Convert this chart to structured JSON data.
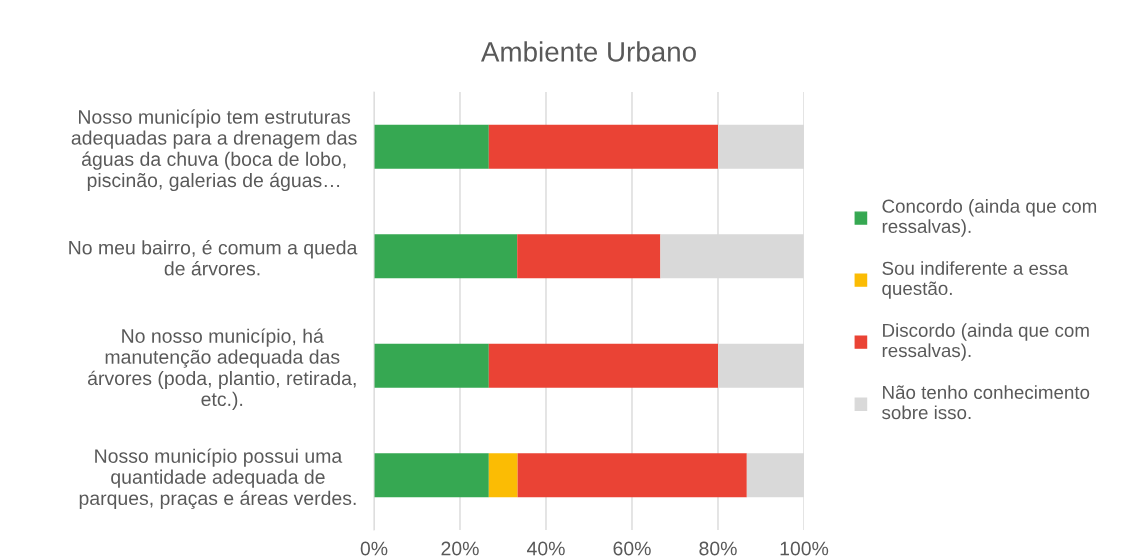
{
  "chart_data": {
    "type": "bar",
    "orientation": "horizontal",
    "stacked": true,
    "title": "Ambiente Urbano",
    "categories": [
      "Nosso município tem estruturas\nadequadas para a drenagem das\náguas da chuva (boca de lobo,\npiscinão, galerias de águas…",
      "No meu bairro, é comum a queda\nde árvores.",
      "No nosso município, há\nmanutenção adequada das\nárvores (poda, plantio, retirada,\netc.).",
      "Nosso município possui uma\nquantidade adequada de\nparques, praças e áreas verdes."
    ],
    "series": [
      {
        "name": "Concordo (ainda que com\nressalvas).",
        "color": "#36a852",
        "values": [
          26.7,
          33.3,
          26.7,
          26.7
        ]
      },
      {
        "name": "Sou indiferente a essa\nquestão.",
        "color": "#fbbc04",
        "values": [
          0,
          0,
          0,
          6.7
        ]
      },
      {
        "name": "Discordo (ainda que com\nressalvas).",
        "color": "#ea4335",
        "values": [
          53.3,
          33.3,
          53.3,
          53.3
        ]
      },
      {
        "name": "Não tenho conhecimento\nsobre isso.",
        "color": "#d9d9d9",
        "values": [
          20,
          33.3,
          20,
          13.3
        ]
      }
    ],
    "xlim": [
      0,
      100
    ],
    "xticks": [
      {
        "value": 0,
        "label": "0%"
      },
      {
        "value": 20,
        "label": "20%"
      },
      {
        "value": 40,
        "label": "40%"
      },
      {
        "value": 60,
        "label": "60%"
      },
      {
        "value": 80,
        "label": "80%"
      },
      {
        "value": 100,
        "label": "100%"
      }
    ],
    "grid": "x",
    "legend": "right"
  }
}
